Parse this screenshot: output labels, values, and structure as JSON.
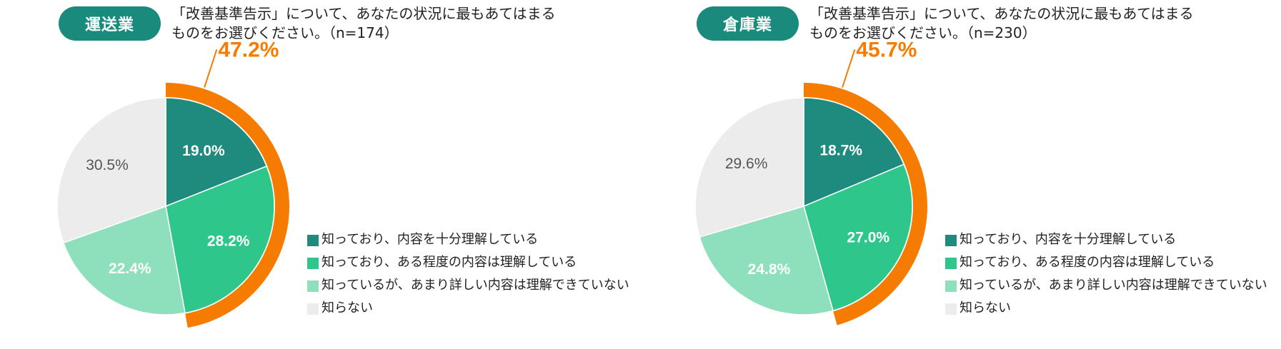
{
  "colors": {
    "badge": "#1a8a7d",
    "highlight_ring": "#f57c00",
    "know_fully": "#1f8a7e",
    "know_somewhat": "#2ec68b",
    "know_little": "#8ee0bd",
    "dont_know": "#ececec"
  },
  "question": {
    "line1": "「改善基準告示」について、あなたの状況に最もあてはまる",
    "line2_left": "ものをお選びください。（n=174）",
    "line2_right": "ものをお選びください。（n=230）"
  },
  "legend": [
    {
      "label": "知っており、内容を十分理解している",
      "color": "#1f8a7e"
    },
    {
      "label": "知っており、ある程度の内容は理解している",
      "color": "#2ec68b"
    },
    {
      "label": "知っているが、あまり詳しい内容は理解できていない",
      "color": "#8ee0bd"
    },
    {
      "label": "知らない",
      "color": "#ececec"
    }
  ],
  "panels": [
    {
      "badge": "運送業",
      "n": 174,
      "highlight": "47.2%"
    },
    {
      "badge": "倉庫業",
      "n": 230,
      "highlight": "45.7%"
    }
  ],
  "chart_data": [
    {
      "type": "pie",
      "title": "運送業",
      "categories": [
        "知っており、内容を十分理解している",
        "知っており、ある程度の内容は理解している",
        "知っているが、あまり詳しい内容は理解できていない",
        "知らない"
      ],
      "values": [
        19.0,
        28.2,
        22.4,
        30.5
      ],
      "labels": [
        "19.0%",
        "28.2%",
        "22.4%",
        "30.5%"
      ],
      "annotation": "47.2%"
    },
    {
      "type": "pie",
      "title": "倉庫業",
      "categories": [
        "知っており、内容を十分理解している",
        "知っており、ある程度の内容は理解している",
        "知っているが、あまり詳しい内容は理解できていない",
        "知らない"
      ],
      "values": [
        18.7,
        27.0,
        24.8,
        29.6
      ],
      "labels": [
        "18.7%",
        "27.0%",
        "24.8%",
        "29.6%"
      ],
      "annotation": "45.7%"
    }
  ]
}
